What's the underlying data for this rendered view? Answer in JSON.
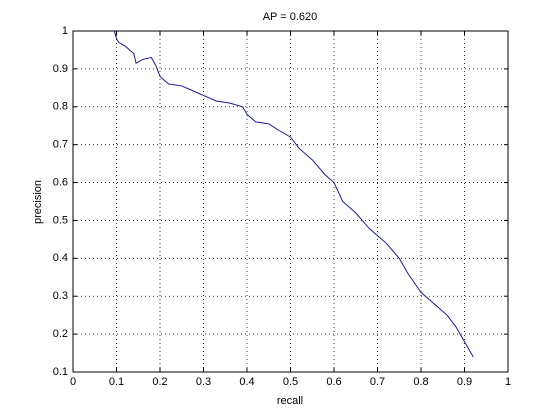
{
  "chart_data": {
    "type": "line",
    "title": "AP = 0.620",
    "x_label": "recall",
    "y_label": "precision",
    "x": [
      0.095,
      0.1,
      0.105,
      0.12,
      0.13,
      0.14,
      0.145,
      0.16,
      0.18,
      0.19,
      0.2,
      0.22,
      0.25,
      0.28,
      0.3,
      0.33,
      0.36,
      0.39,
      0.4,
      0.42,
      0.45,
      0.47,
      0.5,
      0.52,
      0.55,
      0.58,
      0.6,
      0.62,
      0.65,
      0.68,
      0.7,
      0.72,
      0.75,
      0.77,
      0.8,
      0.83,
      0.86,
      0.88,
      0.9,
      0.92
    ],
    "values": [
      1.0,
      0.98,
      0.97,
      0.96,
      0.95,
      0.94,
      0.915,
      0.925,
      0.93,
      0.91,
      0.88,
      0.86,
      0.855,
      0.84,
      0.83,
      0.815,
      0.81,
      0.8,
      0.78,
      0.76,
      0.755,
      0.74,
      0.72,
      0.69,
      0.66,
      0.62,
      0.6,
      0.55,
      0.52,
      0.48,
      0.46,
      0.44,
      0.4,
      0.36,
      0.31,
      0.28,
      0.25,
      0.22,
      0.18,
      0.14
    ],
    "color": "#1a1a9c",
    "xlim": [
      0,
      1
    ],
    "ylim": [
      0.1,
      1
    ],
    "xticks": [
      0,
      0.1,
      0.2,
      0.3,
      0.4,
      0.5,
      0.6,
      0.7,
      0.8,
      0.9,
      1
    ],
    "yticks": [
      0.1,
      0.2,
      0.3,
      0.4,
      0.5,
      0.6,
      0.7,
      0.8,
      0.9,
      1
    ],
    "grid": true
  }
}
